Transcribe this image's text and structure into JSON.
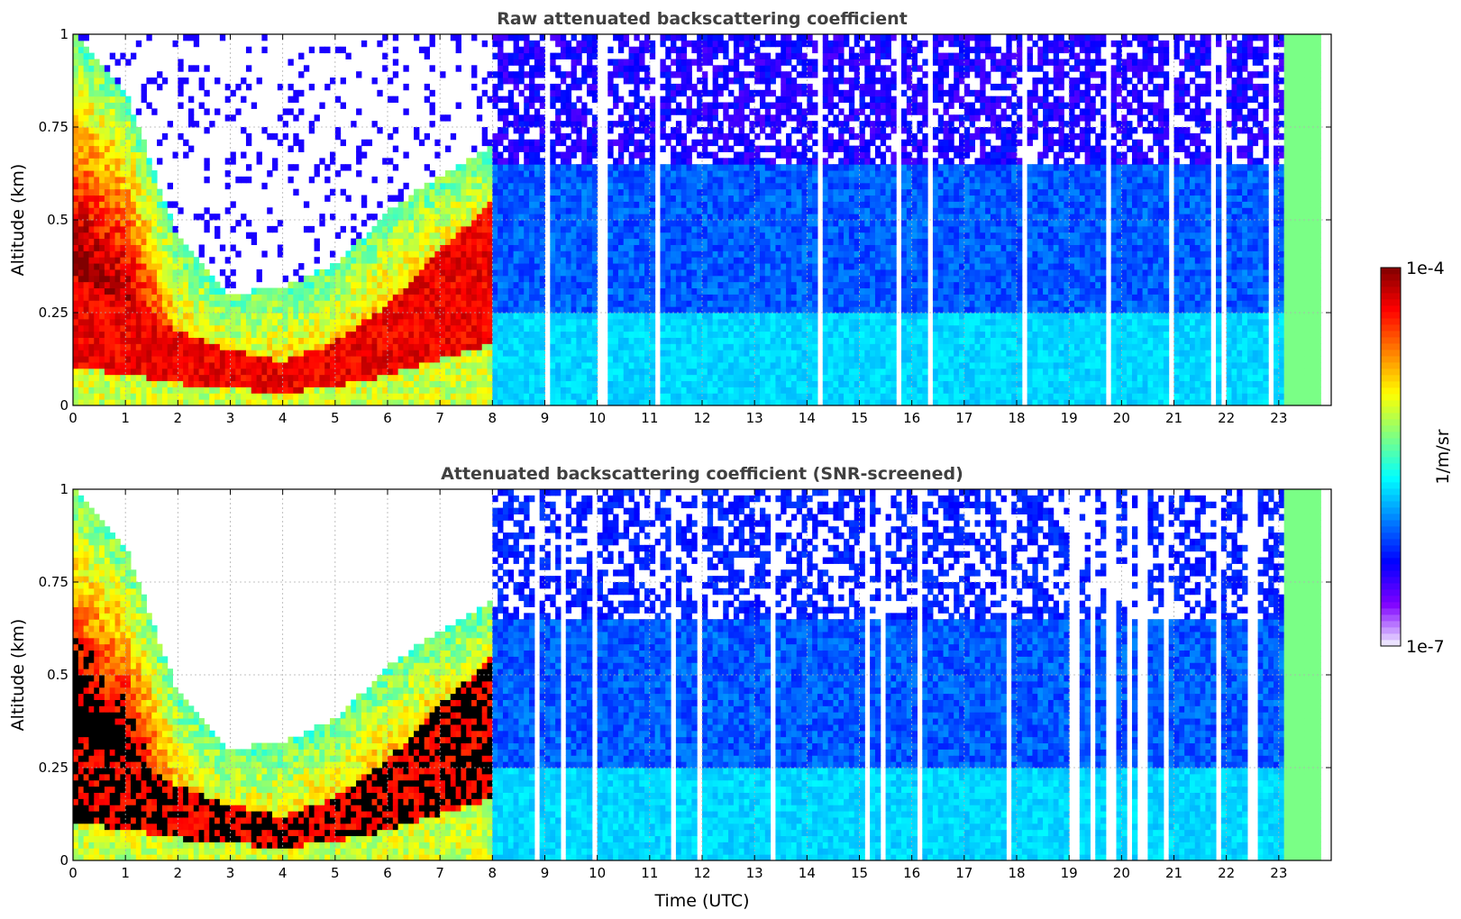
{
  "chart_data": [
    {
      "type": "heatmap",
      "title": "Raw attenuated backscattering coefficient",
      "xlabel": "",
      "ylabel": "Altitude (km)",
      "xlim": [
        0,
        24
      ],
      "ylim": [
        0,
        1
      ],
      "x_ticks": [
        "0",
        "1",
        "2",
        "3",
        "4",
        "5",
        "6",
        "7",
        "8",
        "9",
        "10",
        "11",
        "12",
        "13",
        "14",
        "15",
        "16",
        "17",
        "18",
        "19",
        "20",
        "21",
        "22",
        "23"
      ],
      "y_ticks": [
        "0",
        "0.25",
        "0.5",
        "0.75",
        "1"
      ],
      "grid": true,
      "screened": false,
      "colorscale": "jet",
      "features": {
        "boundary_layer_top_km": [
          {
            "t": 0,
            "h": 0.35
          },
          {
            "t": 1,
            "h": 0.28
          },
          {
            "t": 2,
            "h": 0.2
          },
          {
            "t": 3,
            "h": 0.15
          },
          {
            "t": 4,
            "h": 0.12
          },
          {
            "t": 5,
            "h": 0.17
          },
          {
            "t": 6,
            "h": 0.27
          },
          {
            "t": 7,
            "h": 0.42
          },
          {
            "t": 8,
            "h": 0.55
          }
        ],
        "aerosol_top_km": [
          {
            "t": 0,
            "h": 1.0
          },
          {
            "t": 1,
            "h": 0.85
          },
          {
            "t": 2,
            "h": 0.45
          },
          {
            "t": 3,
            "h": 0.3
          },
          {
            "t": 4,
            "h": 0.32
          },
          {
            "t": 5,
            "h": 0.38
          },
          {
            "t": 6,
            "h": 0.52
          },
          {
            "t": 7,
            "h": 0.62
          },
          {
            "t": 8,
            "h": 0.7
          }
        ],
        "noisy_region_start_h": 8,
        "instrument_gap_start_h": 23.1,
        "instrument_gap_end_h": 23.75
      }
    },
    {
      "type": "heatmap",
      "title": "Attenuated backscattering coefficient (SNR-screened)",
      "xlabel": "Time (UTC)",
      "ylabel": "Altitude (km)",
      "xlim": [
        0,
        24
      ],
      "ylim": [
        0,
        1
      ],
      "x_ticks": [
        "0",
        "1",
        "2",
        "3",
        "4",
        "5",
        "6",
        "7",
        "8",
        "9",
        "10",
        "11",
        "12",
        "13",
        "14",
        "15",
        "16",
        "17",
        "18",
        "19",
        "20",
        "21",
        "22",
        "23"
      ],
      "y_ticks": [
        "0",
        "0.25",
        "0.5",
        "0.75",
        "1"
      ],
      "grid": true,
      "screened": true,
      "colorscale": "jet"
    }
  ],
  "colorbar": {
    "max_label": "1e-4",
    "min_label": "1e-7",
    "unit_label": "1/m/sr",
    "min": 1e-07,
    "max": 0.0001,
    "colors": [
      "#f4f4ff",
      "#7f00ff",
      "#0000ff",
      "#0080ff",
      "#00ffff",
      "#80ff80",
      "#ffff00",
      "#ff8000",
      "#ff0000",
      "#800000"
    ]
  }
}
